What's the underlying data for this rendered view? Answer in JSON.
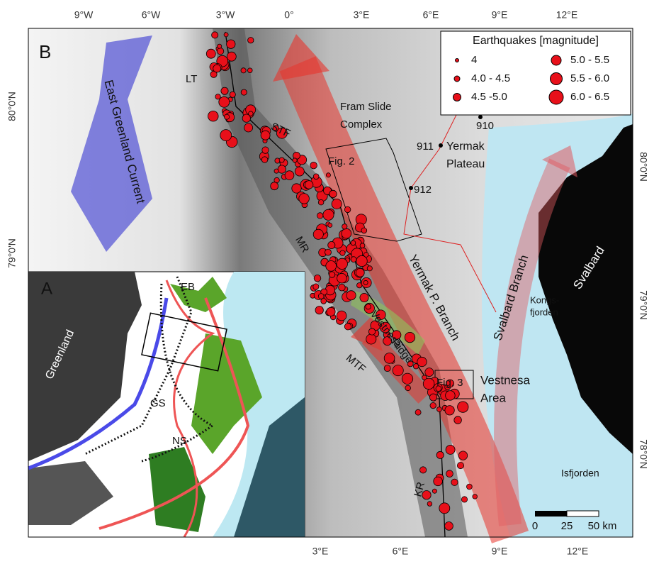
{
  "axes": {
    "top": [
      "9°W",
      "6°W",
      "3°W",
      "0°",
      "3°E",
      "6°E",
      "9°E",
      "12°E"
    ],
    "left": [
      "80°0'N",
      "79°0'N"
    ],
    "right": [
      "80°0'N",
      "79°0'N",
      "78°0'N"
    ],
    "bottom": [
      "3°E",
      "6°E",
      "9°E",
      "12°E"
    ]
  },
  "panels": {
    "main": "B",
    "inset": "A"
  },
  "legend": {
    "title": "Earthquakes [magnitude]",
    "items": [
      "4",
      "4.0 - 4.5",
      "4.5 -5.0",
      "5.0 - 5.5",
      "5.5 - 6.0",
      "6.0 - 6.5"
    ]
  },
  "labels": {
    "egc": "East Greenland Current",
    "lt": "LT",
    "stf": "STF",
    "fram": [
      "Fram Slide",
      "Complex"
    ],
    "fig2": "Fig. 2",
    "yermak": [
      "Yermak",
      "Plateau"
    ],
    "mr": "MR",
    "ypb": "Yermak P. Branch",
    "sb": "Svalbard Branch",
    "svalbard": "Svalbard",
    "kongs": [
      "Kongs-",
      "fjorden"
    ],
    "vestnesa": [
      "Vestnesa",
      "Ridge"
    ],
    "mtf": "MTF",
    "fig3": "Fig. 3",
    "varea": [
      "Vestnesa",
      "Area"
    ],
    "kr": "KR",
    "isfjorden": "Isfjorden"
  },
  "stations": [
    "910",
    "911",
    "912"
  ],
  "scale_bar": [
    "0",
    "25",
    "50 km"
  ],
  "inset_labels": {
    "eb": "EB",
    "greenland": "Greenland",
    "gs": "GS",
    "ns": "NS"
  }
}
